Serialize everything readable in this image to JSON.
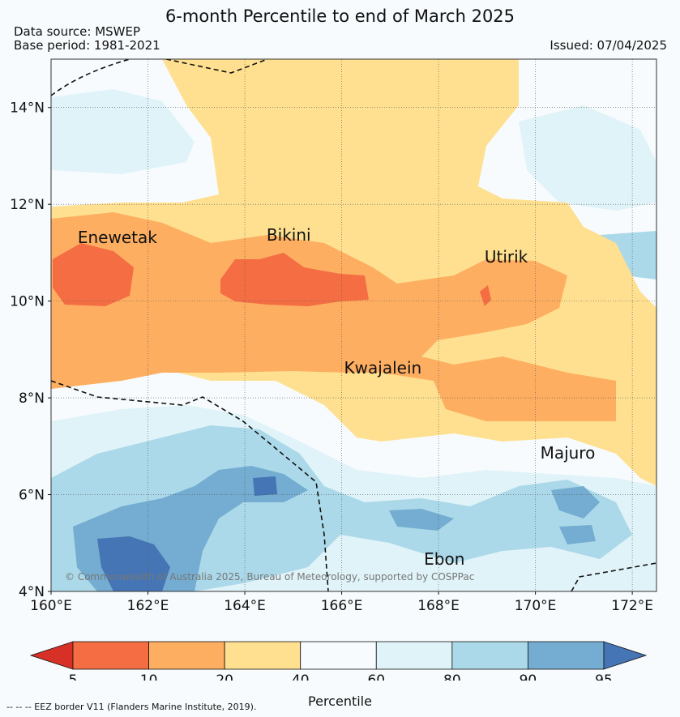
{
  "title": "6-month Percentile to end of March 2025",
  "data_source": "Data source: MSWEP",
  "base_period": "Base period: 1981-2021",
  "issued": "Issued: 07/04/2025",
  "copyright": "© Commonwealth of Australia 2025, Bureau of Meteorology, supported by COSPPac",
  "eez_note": "--  --  -- EEZ border V11 (Flanders Marine Institute, 2019).",
  "map": {
    "lon_range": [
      160,
      172.5
    ],
    "lat_range": [
      4,
      15
    ],
    "lon_ticks": [
      {
        "value": 160,
        "label": "160°E"
      },
      {
        "value": 162,
        "label": "162°E"
      },
      {
        "value": 164,
        "label": "164°E"
      },
      {
        "value": 166,
        "label": "166°E"
      },
      {
        "value": 168,
        "label": "168°E"
      },
      {
        "value": 170,
        "label": "170°E"
      },
      {
        "value": 172,
        "label": "172°E"
      }
    ],
    "lat_ticks": [
      {
        "value": 4,
        "label": "4°N"
      },
      {
        "value": 6,
        "label": "6°N"
      },
      {
        "value": 8,
        "label": "8°N"
      },
      {
        "value": 10,
        "label": "10°N"
      },
      {
        "value": 12,
        "label": "12°N"
      },
      {
        "value": 14,
        "label": "14°N"
      }
    ],
    "places": [
      {
        "name": "Enewetak",
        "lon": 160.55,
        "lat": 11.2
      },
      {
        "name": "Bikini",
        "lon": 164.45,
        "lat": 11.25
      },
      {
        "name": "Utirik",
        "lon": 168.95,
        "lat": 10.8
      },
      {
        "name": "Kwajalein",
        "lon": 166.05,
        "lat": 8.5
      },
      {
        "name": "Majuro",
        "lon": 170.1,
        "lat": 6.75
      },
      {
        "name": "Ebon",
        "lon": 167.7,
        "lat": 4.55
      }
    ]
  },
  "legend": {
    "title": "Percentile",
    "ticks": [
      "5",
      "10",
      "20",
      "40",
      "60",
      "80",
      "90",
      "95"
    ],
    "colors": {
      "lt5": "#d73027",
      "5-10": "#f46d43",
      "10-20": "#fdae61",
      "20-40": "#fee090",
      "40-60": "#f7fbfd",
      "60-80": "#e0f3f8",
      "80-90": "#abd9e9",
      "90-95": "#74add1",
      "gt95": "#4575b4"
    }
  }
}
